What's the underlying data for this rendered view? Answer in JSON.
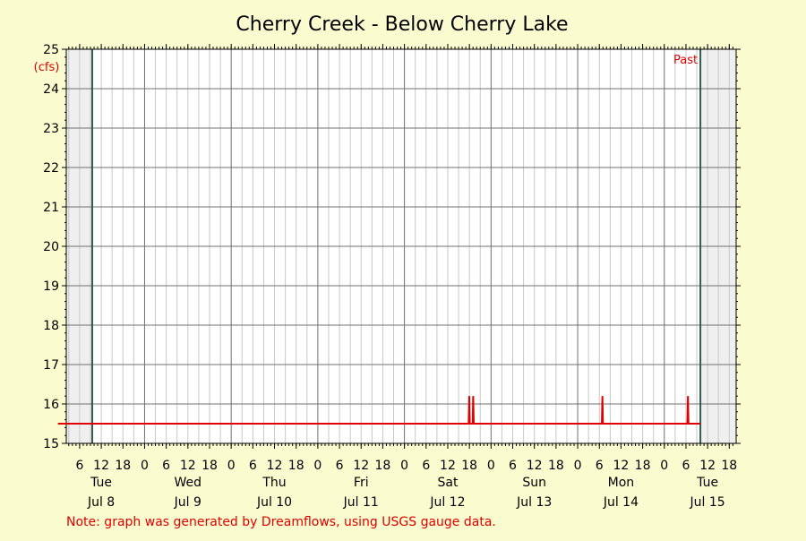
{
  "colors": {
    "background": "#fbfbd0",
    "plot_background": "#ffffff",
    "shaded_region": "#efefef",
    "grid_major": "#707070",
    "grid_minor": "#c8c8c8",
    "series": "#e00000",
    "marker_line": "#2e5e4e",
    "note": "#e00000",
    "text": "#000000"
  },
  "chart_data": {
    "type": "line",
    "title": "Cherry Creek - Below Cherry Lake",
    "ylabel": "(cfs)",
    "ylim": [
      15,
      25
    ],
    "y_ticks": [
      15,
      16,
      17,
      18,
      19,
      20,
      21,
      22,
      23,
      24,
      25
    ],
    "x_unit": "hours",
    "xlim": [
      0,
      186
    ],
    "hour_labels": [
      {
        "x": 6,
        "label": "6"
      },
      {
        "x": 12,
        "label": "12"
      },
      {
        "x": 18,
        "label": "18"
      },
      {
        "x": 24,
        "label": "0"
      },
      {
        "x": 30,
        "label": "6"
      },
      {
        "x": 36,
        "label": "12"
      },
      {
        "x": 42,
        "label": "18"
      },
      {
        "x": 48,
        "label": "0"
      },
      {
        "x": 54,
        "label": "6"
      },
      {
        "x": 60,
        "label": "12"
      },
      {
        "x": 66,
        "label": "18"
      },
      {
        "x": 72,
        "label": "0"
      },
      {
        "x": 78,
        "label": "6"
      },
      {
        "x": 84,
        "label": "12"
      },
      {
        "x": 90,
        "label": "18"
      },
      {
        "x": 96,
        "label": "0"
      },
      {
        "x": 102,
        "label": "6"
      },
      {
        "x": 108,
        "label": "12"
      },
      {
        "x": 114,
        "label": "18"
      },
      {
        "x": 120,
        "label": "0"
      },
      {
        "x": 126,
        "label": "6"
      },
      {
        "x": 132,
        "label": "12"
      },
      {
        "x": 138,
        "label": "18"
      },
      {
        "x": 144,
        "label": "0"
      },
      {
        "x": 150,
        "label": "6"
      },
      {
        "x": 156,
        "label": "12"
      },
      {
        "x": 162,
        "label": "18"
      },
      {
        "x": 168,
        "label": "0"
      },
      {
        "x": 174,
        "label": "6"
      },
      {
        "x": 180,
        "label": "12"
      },
      {
        "x": 186,
        "label": "18"
      }
    ],
    "day_labels": [
      {
        "x": 12,
        "day": "Tue",
        "date": "Jul 8"
      },
      {
        "x": 36,
        "day": "Wed",
        "date": "Jul 9"
      },
      {
        "x": 60,
        "day": "Thu",
        "date": "Jul 10"
      },
      {
        "x": 84,
        "day": "Fri",
        "date": "Jul 11"
      },
      {
        "x": 108,
        "day": "Sat",
        "date": "Jul 12"
      },
      {
        "x": 132,
        "day": "Sun",
        "date": "Jul 13"
      },
      {
        "x": 156,
        "day": "Mon",
        "date": "Jul 14"
      },
      {
        "x": 180,
        "day": "Tue",
        "date": "Jul 15"
      }
    ],
    "shaded_before": 9.5,
    "shaded_after": 178,
    "past_label": "Past",
    "series": [
      {
        "name": "",
        "points": [
          [
            0,
            15.5
          ],
          [
            113.8,
            15.5
          ],
          [
            113.95,
            16.2
          ],
          [
            114.1,
            15.5
          ],
          [
            114.9,
            15.5
          ],
          [
            115.05,
            16.2
          ],
          [
            115.2,
            15.5
          ],
          [
            150.7,
            15.5
          ],
          [
            150.85,
            16.2
          ],
          [
            151.0,
            15.5
          ],
          [
            174.4,
            15.5
          ],
          [
            174.55,
            16.2
          ],
          [
            174.7,
            15.5
          ],
          [
            178,
            15.5
          ]
        ]
      }
    ]
  },
  "note": "Note: graph was generated by Dreamflows, using USGS gauge data."
}
